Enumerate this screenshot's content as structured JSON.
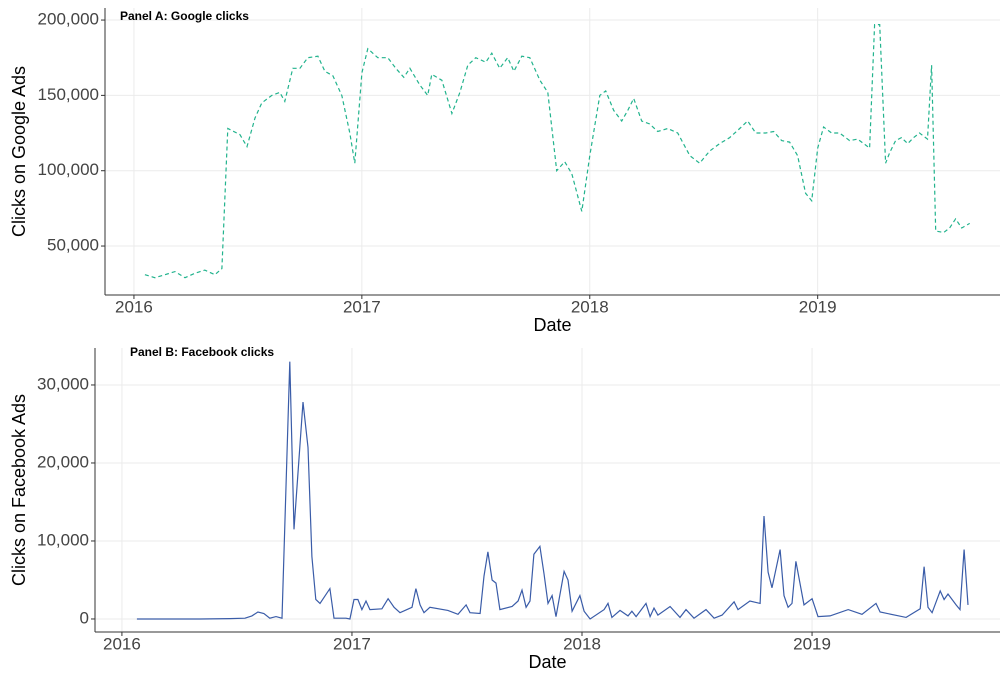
{
  "chart_data": [
    {
      "type": "line",
      "title": "Panel A: Google clicks",
      "x_label": "Date",
      "y_label": "Clicks on Google Ads",
      "color": "#22b38d",
      "line_style": "dashed",
      "grid": true,
      "xlim": [
        2015.873,
        2019.8
      ],
      "xticks": [
        2016,
        2017,
        2018,
        2019
      ],
      "ylim": [
        17500,
        208000
      ],
      "yticks": [
        {
          "value": 50000,
          "label": "50,000"
        },
        {
          "value": 100000,
          "label": "100,000"
        },
        {
          "value": 150000,
          "label": "150,000"
        },
        {
          "value": 200000,
          "label": "200,000"
        }
      ],
      "x": [
        2016.048,
        2016.092,
        2016.136,
        2016.18,
        2016.224,
        2016.268,
        2016.311,
        2016.355,
        2016.386,
        2016.412,
        2016.465,
        2016.496,
        2016.531,
        2016.561,
        2016.605,
        2016.64,
        2016.662,
        2016.697,
        2016.728,
        2016.763,
        2016.807,
        2016.838,
        2016.873,
        2016.912,
        2016.947,
        2016.969,
        2017.0,
        2017.026,
        2017.07,
        2017.114,
        2017.149,
        2017.184,
        2017.211,
        2017.254,
        2017.289,
        2017.307,
        2017.351,
        2017.395,
        2017.43,
        2017.465,
        2017.5,
        2017.544,
        2017.57,
        2017.605,
        2017.64,
        2017.667,
        2017.702,
        2017.737,
        2017.781,
        2017.816,
        2017.855,
        2017.89,
        2017.921,
        2017.965,
        2018.0,
        2018.044,
        2018.07,
        2018.105,
        2018.14,
        2018.167,
        2018.193,
        2018.228,
        2018.263,
        2018.298,
        2018.342,
        2018.386,
        2018.439,
        2018.482,
        2018.526,
        2018.57,
        2018.614,
        2018.658,
        2018.693,
        2018.728,
        2018.772,
        2018.807,
        2018.842,
        2018.877,
        2018.912,
        2018.947,
        2018.974,
        2019.0,
        2019.026,
        2019.061,
        2019.096,
        2019.14,
        2019.175,
        2019.202,
        2019.228,
        2019.25,
        2019.272,
        2019.298,
        2019.316,
        2019.342,
        2019.368,
        2019.395,
        2019.421,
        2019.447,
        2019.482,
        2019.5,
        2019.518,
        2019.553,
        2019.579,
        2019.605,
        2019.632,
        2019.667
      ],
      "values": [
        31000,
        29000,
        31000,
        33000,
        29000,
        32000,
        34000,
        31000,
        35000,
        128000,
        124000,
        116000,
        135000,
        145000,
        150000,
        152000,
        146000,
        168000,
        168000,
        175000,
        176000,
        166000,
        163000,
        150000,
        125000,
        105000,
        165000,
        181000,
        175000,
        175000,
        168000,
        162000,
        168000,
        157000,
        150000,
        164000,
        160000,
        138000,
        152000,
        170000,
        175000,
        172000,
        178000,
        168000,
        175000,
        166000,
        176000,
        175000,
        160000,
        152000,
        100000,
        106000,
        98000,
        73000,
        110000,
        150000,
        153000,
        140000,
        133000,
        140000,
        148000,
        133000,
        131000,
        126000,
        128000,
        125000,
        110000,
        105000,
        113000,
        118000,
        122000,
        128000,
        133000,
        125000,
        125000,
        126000,
        120000,
        119000,
        110000,
        85000,
        80000,
        115000,
        129000,
        125000,
        125000,
        120000,
        121000,
        118000,
        115000,
        197000,
        197000,
        105000,
        112000,
        120000,
        122000,
        118000,
        122000,
        125000,
        121000,
        170000,
        60000,
        59000,
        62000,
        68000,
        62000,
        65000
      ]
    },
    {
      "type": "line",
      "title": "Panel B: Facebook clicks",
      "x_label": "Date",
      "y_label": "Clicks on Facebook Ads",
      "color": "#3a5ca8",
      "line_style": "solid",
      "grid": true,
      "xlim": [
        2015.883,
        2019.817
      ],
      "xticks": [
        2016,
        2017,
        2018,
        2019
      ],
      "ylim": [
        -1670,
        34740
      ],
      "yticks": [
        0,
        {
          "value": 10000,
          "label": "10,000"
        },
        {
          "value": 20000,
          "label": "20,000"
        },
        {
          "value": 30000,
          "label": "30,000"
        }
      ],
      "x": [
        2016.065,
        2016.165,
        2016.339,
        2016.47,
        2016.535,
        2016.565,
        2016.591,
        2016.617,
        2016.643,
        2016.67,
        2016.696,
        2016.73,
        2016.748,
        2016.787,
        2016.809,
        2016.826,
        2016.843,
        2016.861,
        2016.904,
        2016.922,
        2016.974,
        2016.991,
        2017.009,
        2017.026,
        2017.043,
        2017.061,
        2017.078,
        2017.13,
        2017.157,
        2017.183,
        2017.209,
        2017.261,
        2017.278,
        2017.296,
        2017.313,
        2017.339,
        2017.417,
        2017.461,
        2017.496,
        2017.513,
        2017.557,
        2017.574,
        2017.591,
        2017.609,
        2017.626,
        2017.643,
        2017.696,
        2017.722,
        2017.739,
        2017.757,
        2017.774,
        2017.791,
        2017.817,
        2017.835,
        2017.852,
        2017.87,
        2017.887,
        2017.922,
        2017.939,
        2017.957,
        2017.991,
        2018.009,
        2018.035,
        2018.096,
        2018.113,
        2018.13,
        2018.165,
        2018.2,
        2018.217,
        2018.235,
        2018.278,
        2018.296,
        2018.313,
        2018.33,
        2018.383,
        2018.426,
        2018.452,
        2018.487,
        2018.539,
        2018.574,
        2018.609,
        2018.661,
        2018.678,
        2018.73,
        2018.774,
        2018.791,
        2018.809,
        2018.826,
        2018.861,
        2018.878,
        2018.896,
        2018.913,
        2018.93,
        2018.965,
        2019.0,
        2019.026,
        2019.078,
        2019.157,
        2019.217,
        2019.278,
        2019.296,
        2019.409,
        2019.47,
        2019.487,
        2019.504,
        2019.522,
        2019.557,
        2019.574,
        2019.591,
        2019.626,
        2019.643,
        2019.661,
        2019.678
      ],
      "values": [
        0,
        0,
        0,
        50,
        100,
        400,
        900,
        700,
        100,
        300,
        100,
        33000,
        11500,
        27800,
        22000,
        8000,
        2500,
        2000,
        3900,
        100,
        100,
        0,
        2500,
        2500,
        1200,
        2300,
        1200,
        1300,
        2600,
        1500,
        800,
        1500,
        3900,
        1800,
        800,
        1500,
        1100,
        600,
        1800,
        800,
        700,
        5500,
        8600,
        5000,
        4600,
        1200,
        1600,
        2300,
        3700,
        1500,
        2300,
        8300,
        9300,
        5800,
        2000,
        3000,
        300,
        6100,
        5000,
        1000,
        3000,
        1000,
        0,
        1200,
        2000,
        200,
        1100,
        400,
        1000,
        300,
        2000,
        300,
        1400,
        500,
        1600,
        200,
        1200,
        100,
        1200,
        100,
        500,
        2200,
        1200,
        2300,
        2000,
        13200,
        6000,
        4000,
        8900,
        3000,
        1500,
        2000,
        7400,
        1800,
        2600,
        300,
        400,
        1200,
        600,
        2000,
        900,
        200,
        1300,
        6700,
        1500,
        800,
        3600,
        2500,
        3200,
        1800,
        1200,
        8900,
        1800
      ]
    }
  ]
}
